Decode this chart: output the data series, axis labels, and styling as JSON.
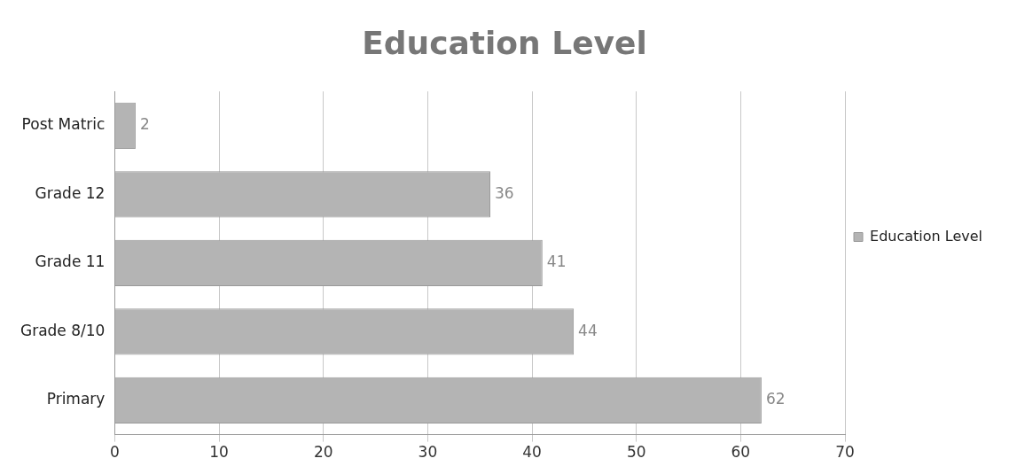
{
  "chart_data": {
    "type": "bar",
    "orientation": "horizontal",
    "title": "Education Level",
    "categories": [
      "Post Matric",
      "Grade 12",
      "Grade 11",
      "Grade 8/10",
      "Primary"
    ],
    "series": [
      {
        "name": "Education Level",
        "color": "#b4b4b4",
        "values": [
          2,
          36,
          41,
          44,
          62
        ]
      }
    ],
    "xlim": [
      0,
      70
    ],
    "xticks": [
      0,
      10,
      20,
      30,
      40,
      50,
      60,
      70
    ],
    "grid": "x",
    "legend": "right",
    "data_labels": true
  }
}
